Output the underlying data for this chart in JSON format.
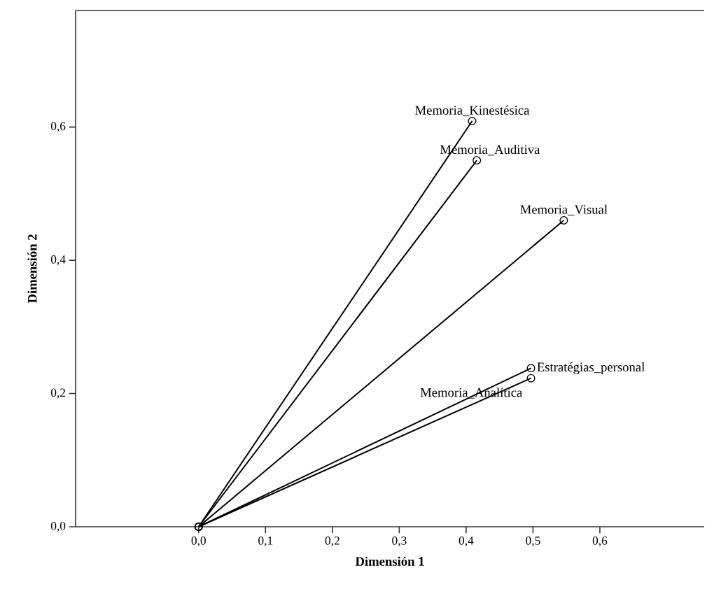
{
  "chart_data": {
    "type": "line",
    "xlabel": "Dimensión 1",
    "ylabel": "Dimensión 2",
    "xlim": [
      -0.184,
      0.756
    ],
    "ylim": [
      0,
      0.775
    ],
    "xticks": [
      {
        "value": 0,
        "label": "0,0"
      },
      {
        "value": 0.1,
        "label": "0,1"
      },
      {
        "value": 0.2,
        "label": "0,2"
      },
      {
        "value": 0.3,
        "label": "0,3"
      },
      {
        "value": 0.4,
        "label": "0,4"
      },
      {
        "value": 0.5,
        "label": "0,5"
      },
      {
        "value": 0.6,
        "label": "0,6"
      }
    ],
    "yticks": [
      {
        "value": 0,
        "label": "0,0"
      },
      {
        "value": 0.2,
        "label": "0,2"
      },
      {
        "value": 0.4,
        "label": "0,4"
      },
      {
        "value": 0.6,
        "label": "0,6"
      }
    ],
    "marker": "circle",
    "line_style": "solid",
    "grid": false,
    "series": [
      {
        "name": "Memoria_Kinestésica",
        "color": "#000000",
        "x": [
          0,
          0.409
        ],
        "values": [
          0,
          0.609
        ]
      },
      {
        "name": "Memoria_Auditiva",
        "color": "#000000",
        "x": [
          0,
          0.416
        ],
        "values": [
          0,
          0.55
        ]
      },
      {
        "name": "Memoria_Visual",
        "color": "#000000",
        "x": [
          0,
          0.546
        ],
        "values": [
          0,
          0.46
        ]
      },
      {
        "name": "Estratégias_personal",
        "color": "#000000",
        "x": [
          0,
          0.497
        ],
        "values": [
          0,
          0.238
        ]
      },
      {
        "name": "Memoria_Analítica",
        "color": "#000000",
        "x": [
          0,
          0.497
        ],
        "values": [
          0,
          0.223
        ]
      }
    ]
  }
}
